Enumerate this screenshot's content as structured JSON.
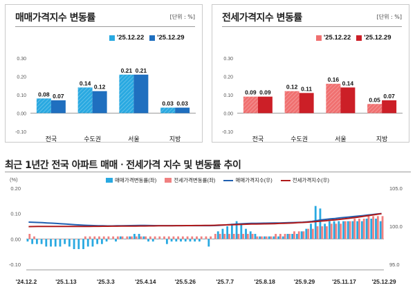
{
  "panels": [
    {
      "title": "매매가격지수 변동률",
      "unit": "[단위 : %]",
      "colors": [
        "#29a9e1",
        "#1f6fbf"
      ],
      "chart_data": {
        "type": "bar",
        "categories": [
          "전국",
          "수도권",
          "서울",
          "지방"
        ],
        "series": [
          {
            "name": "'25.12.22",
            "values": [
              0.08,
              0.14,
              0.21,
              0.03
            ]
          },
          {
            "name": "'25.12.29",
            "values": [
              0.07,
              0.12,
              0.21,
              0.03
            ]
          }
        ],
        "value_labels": [
          [
            "0.08",
            "0.14",
            "0.21",
            "0.03"
          ],
          [
            "0.07",
            "0.12",
            "0.21",
            "0.03"
          ]
        ],
        "ylim": [
          -0.1,
          0.3
        ],
        "yticks": [
          "0.30",
          "0.20",
          "0.10",
          "0.00",
          "-0.10"
        ]
      }
    },
    {
      "title": "전세가격지수 변동률",
      "unit": "[단위 : %]",
      "colors": [
        "#f07070",
        "#cc1f27"
      ],
      "chart_data": {
        "type": "bar",
        "categories": [
          "전국",
          "수도권",
          "서울",
          "지방"
        ],
        "series": [
          {
            "name": "'25.12.22",
            "values": [
              0.09,
              0.12,
              0.16,
              0.05
            ]
          },
          {
            "name": "'25.12.29",
            "values": [
              0.09,
              0.11,
              0.14,
              0.07
            ]
          }
        ],
        "value_labels": [
          [
            "0.09",
            "0.12",
            "0.16",
            "0.05"
          ],
          [
            "0.09",
            "0.11",
            "0.14",
            "0.07"
          ]
        ],
        "ylim": [
          -0.1,
          0.3
        ],
        "yticks": [
          "0.30",
          "0.20",
          "0.10",
          "0.00",
          "-0.10"
        ]
      }
    }
  ],
  "bottom": {
    "title": "최근 1년간 전국 아파트 매매ㆍ전세가격 지수 및 변동률 추이",
    "left_unit": "(%)",
    "legend": [
      "매매가격변동률(좌)",
      "전세가격변동률(좌)",
      "매매가격지수(우)",
      "전세가격지수(우)"
    ],
    "colors": {
      "sale_bar": "#29a9e1",
      "jeonse_bar": "#f08080",
      "sale_line": "#1f5fb0",
      "jeonse_line": "#b01a1a"
    },
    "chart_data": {
      "type": "bar",
      "x_tick_labels": [
        "'24.12.2",
        "'25.1.13",
        "'25.3.3",
        "'25.4.14",
        "'25.5.26",
        "'25.7.7",
        "'25.8.18",
        "'25.9.29",
        "'25.11.17",
        "'25.12.29"
      ],
      "left_ylim": [
        -0.1,
        0.2
      ],
      "left_yticks": [
        "0.20",
        "0.10",
        "0.00",
        "-0.10"
      ],
      "right_ylim": [
        95.0,
        105.0
      ],
      "right_yticks": [
        "105.0",
        "100.0",
        "95.0"
      ],
      "series": [
        {
          "name": "매매가격변동률(좌)",
          "axis": "left",
          "kind": "bar",
          "values": [
            -0.01,
            -0.02,
            -0.02,
            -0.02,
            -0.03,
            -0.03,
            -0.03,
            -0.03,
            -0.02,
            -0.03,
            -0.04,
            -0.04,
            -0.04,
            -0.03,
            -0.03,
            -0.02,
            -0.02,
            -0.01,
            0.0,
            -0.01,
            0.01,
            0.0,
            0.01,
            0.02,
            0.02,
            0.01,
            -0.01,
            -0.01,
            0.0,
            0.0,
            -0.02,
            -0.01,
            -0.01,
            -0.01,
            -0.01,
            -0.01,
            -0.01,
            -0.01,
            0.0,
            -0.03,
            0.0,
            0.03,
            0.04,
            0.05,
            0.06,
            0.07,
            0.06,
            0.04,
            0.03,
            0.02,
            0.01,
            0.01,
            0.01,
            0.01,
            0.01,
            0.01,
            0.02,
            0.02,
            0.02,
            0.03,
            0.04,
            0.06,
            0.13,
            0.12,
            0.06,
            0.07,
            0.07,
            0.07,
            0.07,
            0.07,
            0.07,
            0.07,
            0.07,
            0.08,
            0.08,
            0.08,
            0.07
          ]
        },
        {
          "name": "전세가격변동률(좌)",
          "axis": "left",
          "kind": "bar",
          "values": [
            0.02,
            0.01,
            0.0,
            0.0,
            0.0,
            0.0,
            0.0,
            0.0,
            0.0,
            0.0,
            0.0,
            0.0,
            0.01,
            0.01,
            0.01,
            0.01,
            0.01,
            0.01,
            0.01,
            0.01,
            0.01,
            0.01,
            0.01,
            0.01,
            0.01,
            0.01,
            0.01,
            0.01,
            0.01,
            0.01,
            0.01,
            0.01,
            0.01,
            0.01,
            0.01,
            0.01,
            0.01,
            0.01,
            0.01,
            0.01,
            0.02,
            0.02,
            0.02,
            0.02,
            0.02,
            0.02,
            0.02,
            0.02,
            0.02,
            0.01,
            0.01,
            0.01,
            0.01,
            0.02,
            0.02,
            0.02,
            0.02,
            0.03,
            0.03,
            0.03,
            0.04,
            0.04,
            0.05,
            0.05,
            0.05,
            0.06,
            0.06,
            0.06,
            0.07,
            0.07,
            0.08,
            0.08,
            0.08,
            0.09,
            0.09,
            0.09,
            0.09
          ]
        },
        {
          "name": "매매가격지수(우)",
          "axis": "right",
          "kind": "line",
          "values": [
            100.55,
            100.52,
            100.5,
            100.47,
            100.44,
            100.41,
            100.37,
            100.33,
            100.29,
            100.25,
            100.21,
            100.17,
            100.14,
            100.11,
            100.09,
            100.07,
            100.06,
            100.05,
            100.05,
            100.06,
            100.07,
            100.08,
            100.09,
            100.1,
            100.11,
            100.11,
            100.1,
            100.09,
            100.08,
            100.08,
            100.08,
            100.08,
            100.08,
            100.08,
            100.08,
            100.08,
            100.08,
            100.08,
            100.08,
            100.08,
            100.09,
            100.12,
            100.16,
            100.2,
            100.25,
            100.3,
            100.33,
            100.36,
            100.38,
            100.39,
            100.4,
            100.41,
            100.42,
            100.43,
            100.44,
            100.45,
            100.47,
            100.49,
            100.51,
            100.54,
            100.58,
            100.64,
            100.75,
            100.85,
            100.91,
            100.97,
            101.03,
            101.1,
            101.16,
            101.22,
            101.28,
            101.34,
            101.4,
            101.47,
            101.54,
            101.61,
            101.67
          ]
        },
        {
          "name": "전세가격지수(우)",
          "axis": "right",
          "kind": "line",
          "values": [
            99.95,
            99.96,
            99.97,
            99.97,
            99.97,
            99.97,
            99.97,
            99.97,
            99.97,
            99.97,
            99.97,
            99.97,
            99.98,
            99.98,
            99.99,
            99.99,
            100.0,
            100.0,
            100.01,
            100.01,
            100.02,
            100.02,
            100.03,
            100.03,
            100.04,
            100.04,
            100.05,
            100.05,
            100.06,
            100.06,
            100.07,
            100.07,
            100.08,
            100.08,
            100.09,
            100.09,
            100.1,
            100.1,
            100.11,
            100.11,
            100.13,
            100.15,
            100.17,
            100.19,
            100.21,
            100.23,
            100.25,
            100.27,
            100.29,
            100.3,
            100.31,
            100.32,
            100.33,
            100.35,
            100.37,
            100.39,
            100.41,
            100.44,
            100.47,
            100.5,
            100.54,
            100.58,
            100.63,
            100.68,
            100.73,
            100.79,
            100.85,
            100.91,
            100.98,
            101.05,
            101.13,
            101.21,
            101.29,
            101.38,
            101.47,
            101.56,
            101.65
          ]
        }
      ]
    }
  }
}
